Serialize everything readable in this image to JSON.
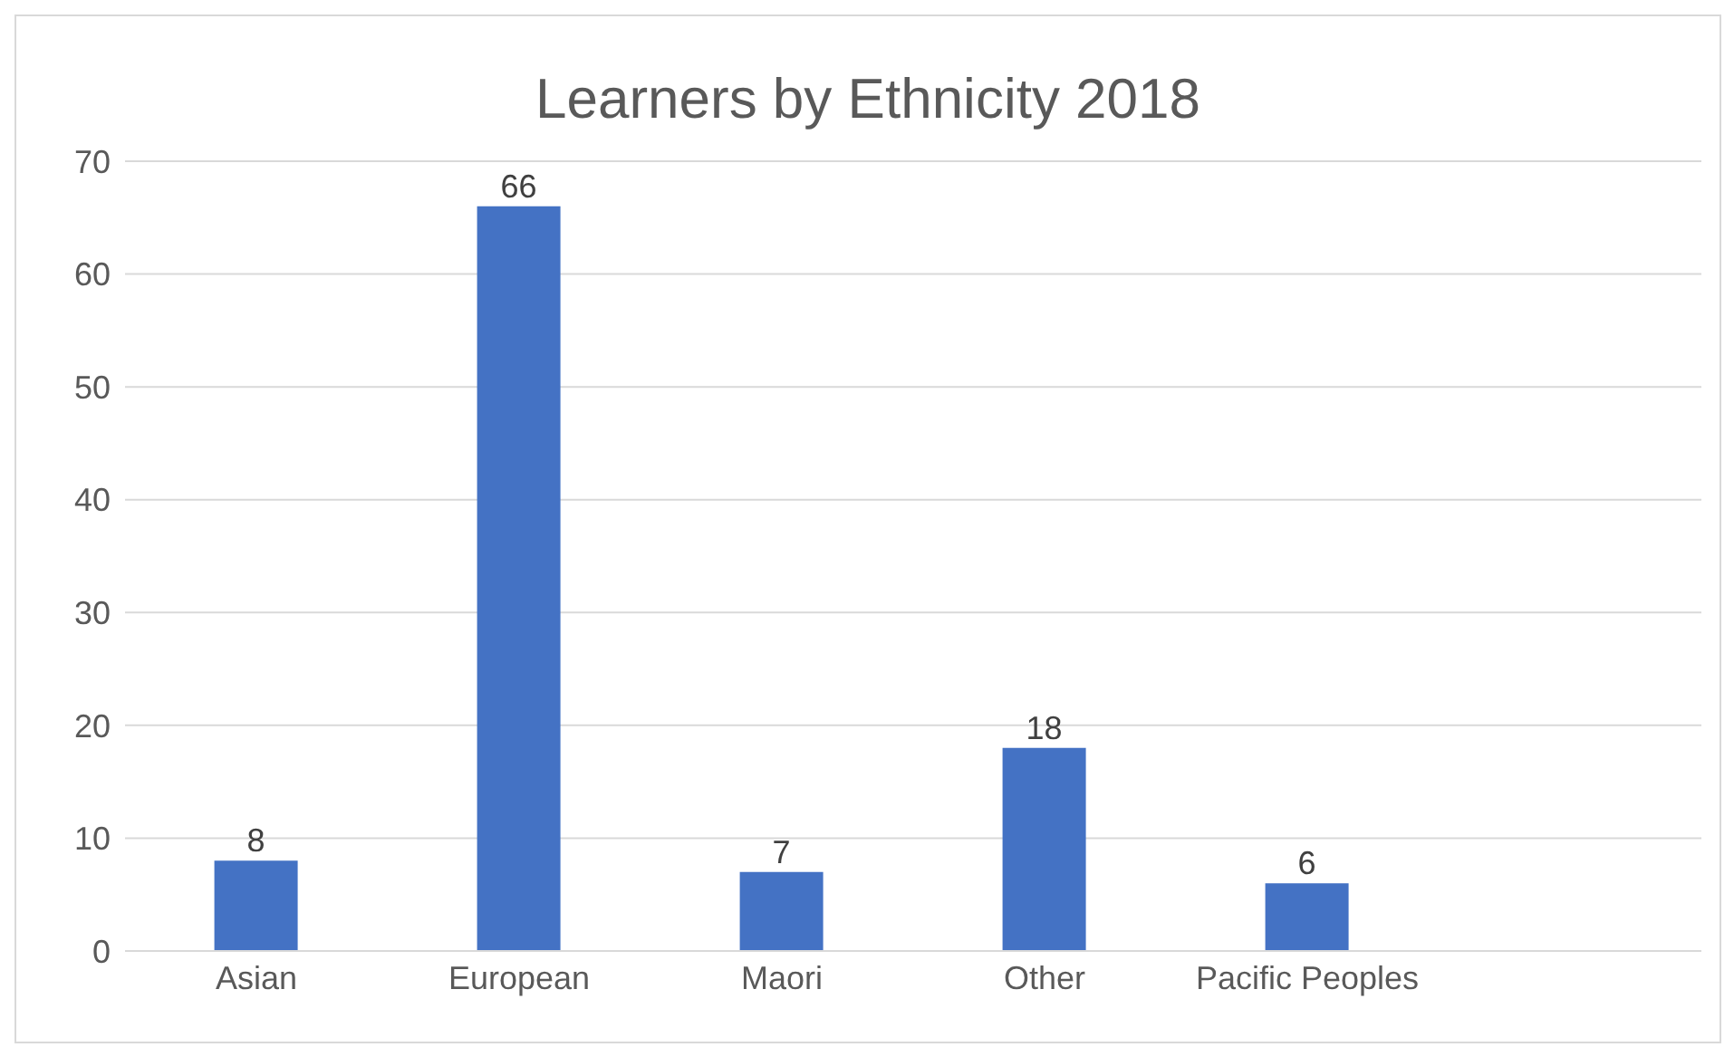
{
  "chart_data": {
    "type": "bar",
    "title": "Learners by Ethnicity 2018",
    "categories": [
      "Asian",
      "European",
      "Maori",
      "Other",
      "Pacific Peoples",
      null
    ],
    "values": [
      8,
      66,
      7,
      18,
      6,
      null
    ],
    "color": "#4472c4",
    "ylim": [
      0,
      70
    ],
    "yticks": [
      0,
      10,
      20,
      30,
      40,
      50,
      60,
      70
    ],
    "grid": "y",
    "data_labels": true
  }
}
